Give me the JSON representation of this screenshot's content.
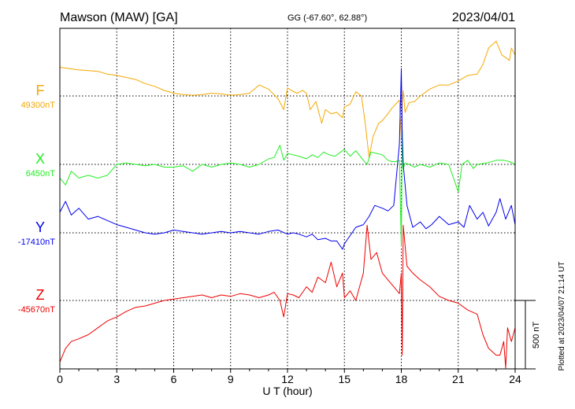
{
  "header": {
    "station": "Mawson (MAW)  [GA]",
    "coords": "GG (-67.60°,  62.88°)",
    "date": "2023/04/01"
  },
  "footer": {
    "plotted": "Plotted at 2023/04/07 21:14 UT"
  },
  "chart_data": {
    "type": "line",
    "xlabel": "U T (hour)",
    "xlim": [
      0,
      24
    ],
    "xticks": [
      0,
      3,
      6,
      9,
      12,
      15,
      18,
      21,
      24
    ],
    "scale_bar": {
      "label": "500 nT",
      "value": 500
    },
    "series": [
      {
        "name": "F",
        "baseline_label": "49300nT",
        "color": "#f5a800",
        "x": [
          0,
          0.5,
          1,
          1.5,
          2,
          2.5,
          3,
          3.5,
          4,
          4.5,
          5,
          5.5,
          6,
          6.5,
          7,
          7.5,
          8,
          8.5,
          9,
          9.5,
          10,
          10.5,
          11,
          11.5,
          11.8,
          12,
          12.2,
          12.5,
          12.8,
          13,
          13.2,
          13.5,
          13.8,
          14,
          14.3,
          14.6,
          14.9,
          15,
          15.3,
          15.6,
          15.9,
          16.1,
          16.3,
          16.5,
          16.8,
          17,
          17.3,
          17.5,
          17.7,
          17.9,
          18,
          18.05,
          18.1,
          18.2,
          18.4,
          18.7,
          19,
          19.5,
          20,
          20.5,
          21,
          21.5,
          22,
          22.3,
          22.6,
          23,
          23.3,
          23.5,
          23.7,
          23.8,
          24
        ],
        "y": [
          210,
          200,
          190,
          185,
          180,
          160,
          150,
          135,
          120,
          90,
          70,
          40,
          20,
          10,
          5,
          10,
          20,
          15,
          5,
          10,
          20,
          80,
          50,
          -20,
          -100,
          60,
          40,
          20,
          40,
          20,
          -100,
          -40,
          -200,
          -100,
          -130,
          -120,
          -160,
          -80,
          -60,
          30,
          0,
          -200,
          -450,
          -300,
          -200,
          -180,
          -130,
          -90,
          -60,
          -30,
          -310,
          -40,
          40,
          -120,
          -50,
          -40,
          0,
          50,
          80,
          80,
          110,
          150,
          160,
          230,
          350,
          400,
          300,
          280,
          260,
          350,
          300
        ]
      },
      {
        "name": "X",
        "baseline_label": "6450nT",
        "color": "#22ee22",
        "x": [
          0,
          0.3,
          0.6,
          1,
          1.5,
          2,
          2.5,
          3,
          3.5,
          4,
          4.5,
          5,
          5.5,
          6,
          6.5,
          7,
          7.5,
          8,
          8.5,
          9,
          9.5,
          10,
          10.5,
          11,
          11.3,
          11.6,
          11.8,
          12,
          12.3,
          12.6,
          13,
          13.3,
          13.6,
          13.9,
          14.2,
          14.5,
          14.8,
          15,
          15.3,
          15.6,
          16,
          16.2,
          16.4,
          16.7,
          17,
          17.3,
          17.5,
          17.7,
          17.9,
          18,
          18.05,
          18.1,
          18.2,
          18.4,
          18.7,
          19,
          19.5,
          20,
          20.5,
          21,
          21.2,
          21.5,
          21.8,
          22,
          22.5,
          23,
          23.4,
          23.7,
          24
        ],
        "y": [
          -100,
          -150,
          -50,
          -100,
          -80,
          -100,
          -80,
          0,
          10,
          0,
          -10,
          0,
          -20,
          -20,
          -10,
          -50,
          0,
          -20,
          0,
          10,
          0,
          -20,
          0,
          40,
          50,
          140,
          30,
          80,
          70,
          60,
          40,
          70,
          50,
          90,
          70,
          60,
          90,
          110,
          60,
          100,
          30,
          0,
          90,
          80,
          70,
          30,
          20,
          20,
          30,
          -600,
          250,
          -30,
          10,
          0,
          -20,
          0,
          -20,
          10,
          0,
          -200,
          0,
          30,
          -30,
          0,
          10,
          30,
          30,
          20,
          0
        ]
      },
      {
        "name": "Y",
        "baseline_label": "-17410nT",
        "color": "#0000ee",
        "x": [
          0,
          0.3,
          0.6,
          1,
          1.5,
          2,
          2.5,
          3,
          3.5,
          4,
          4.5,
          5,
          5.5,
          6,
          6.5,
          7,
          7.5,
          8,
          8.5,
          9,
          9.5,
          10,
          10.5,
          11,
          11.5,
          12,
          12.3,
          12.6,
          13,
          13.3,
          13.6,
          14,
          14.3,
          14.6,
          14.9,
          15,
          15.3,
          15.6,
          16,
          16.3,
          16.6,
          17,
          17.3,
          17.6,
          17.8,
          17.9,
          18,
          18.05,
          18.1,
          18.3,
          18.6,
          19,
          19.3,
          19.6,
          20,
          20.5,
          21,
          21.3,
          21.6,
          22,
          22.3,
          22.6,
          23,
          23.2,
          23.5,
          23.8,
          24
        ],
        "y": [
          150,
          230,
          130,
          180,
          100,
          120,
          90,
          60,
          40,
          20,
          0,
          -10,
          0,
          20,
          10,
          0,
          -10,
          0,
          10,
          0,
          10,
          0,
          -10,
          10,
          20,
          -10,
          0,
          -10,
          -30,
          -10,
          -50,
          -40,
          -60,
          -60,
          -120,
          -80,
          -20,
          40,
          60,
          120,
          200,
          180,
          160,
          200,
          500,
          650,
          1200,
          700,
          500,
          200,
          40,
          80,
          30,
          60,
          120,
          60,
          80,
          40,
          200,
          100,
          150,
          50,
          150,
          250,
          100,
          200,
          60
        ]
      },
      {
        "name": "Z",
        "baseline_label": "-45670nT",
        "color": "#ee0000",
        "x": [
          0,
          0.3,
          0.6,
          1,
          1.5,
          2,
          2.5,
          3,
          3.5,
          4,
          4.5,
          5,
          5.5,
          6,
          6.5,
          7,
          7.5,
          8,
          8.5,
          9,
          9.5,
          10,
          10.5,
          11,
          11.3,
          11.6,
          11.8,
          12,
          12.3,
          12.6,
          13,
          13.3,
          13.6,
          14,
          14.3,
          14.6,
          14.9,
          15,
          15.3,
          15.6,
          16,
          16.2,
          16.4,
          16.7,
          17,
          17.3,
          17.6,
          17.9,
          18,
          18.05,
          18.1,
          18.3,
          18.6,
          19,
          19.5,
          20,
          20.5,
          21,
          21.5,
          22,
          22.3,
          22.6,
          23,
          23.2,
          23.4,
          23.5,
          23.6,
          23.8,
          24
        ],
        "y": [
          -450,
          -350,
          -300,
          -280,
          -250,
          -200,
          -150,
          -120,
          -80,
          -50,
          -40,
          -20,
          0,
          10,
          20,
          30,
          40,
          20,
          40,
          30,
          50,
          40,
          20,
          40,
          60,
          0,
          -120,
          50,
          40,
          20,
          100,
          60,
          170,
          130,
          280,
          100,
          200,
          20,
          70,
          0,
          200,
          550,
          300,
          350,
          200,
          150,
          100,
          50,
          200,
          -400,
          550,
          250,
          200,
          150,
          100,
          30,
          0,
          -20,
          -70,
          -100,
          -250,
          -350,
          -400,
          -400,
          -300,
          -500,
          -200,
          -300,
          -200
        ]
      }
    ]
  }
}
